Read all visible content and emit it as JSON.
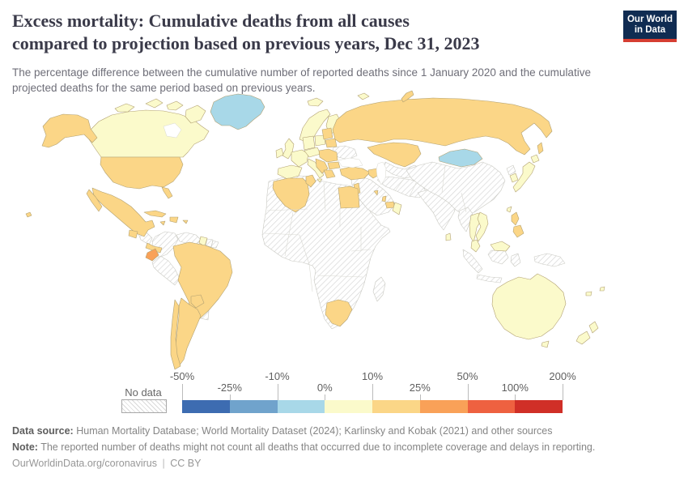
{
  "header": {
    "title_line1": "Excess mortality: Cumulative deaths from all causes",
    "title_line2": "compared to projection based on previous years, Dec 31, 2023",
    "subtitle": "The percentage difference between the cumulative number of reported deaths since 1 January 2020 and the cumulative projected deaths for the same period based on previous years.",
    "logo": {
      "line1": "Our World",
      "line2": "in Data"
    }
  },
  "legend": {
    "no_data_label": "No data",
    "ticks": [
      {
        "label": "-50%",
        "row": "top"
      },
      {
        "label": "-25%",
        "row": "bottom"
      },
      {
        "label": "-10%",
        "row": "top"
      },
      {
        "label": "0%",
        "row": "bottom"
      },
      {
        "label": "10%",
        "row": "top"
      },
      {
        "label": "25%",
        "row": "bottom"
      },
      {
        "label": "50%",
        "row": "top"
      },
      {
        "label": "100%",
        "row": "bottom"
      },
      {
        "label": "200%",
        "row": "top"
      }
    ],
    "bins": [
      {
        "label": "-50% to -25%",
        "color": "#3d6cb1"
      },
      {
        "label": "-25% to -10%",
        "color": "#70a3cc"
      },
      {
        "label": "-10% to 0%",
        "color": "#a8d8e8"
      },
      {
        "label": "0% to 10%",
        "color": "#fbfacb"
      },
      {
        "label": "10% to 25%",
        "color": "#fbd687"
      },
      {
        "label": "25% to 50%",
        "color": "#f9a158"
      },
      {
        "label": "50% to 100%",
        "color": "#ee6140"
      },
      {
        "label": "100% to 200%",
        "color": "#d02f27"
      }
    ]
  },
  "map": {
    "border_color": "#b2a172",
    "no_data_border": "#c9c9c2",
    "regions": {
      "africa": "no_data",
      "madagascar": "no_data",
      "colombia": "no_data",
      "venezuela": "no_data",
      "suriname": "no_data",
      "fr-guiana": "no_data",
      "peru": "no_data",
      "bolivia": "no_data",
      "uruguay": "no_data",
      "honduras-nicaragua": "no_data",
      "ukraine": "no_data",
      "central-asia": "no_data",
      "middle-east": "no_data",
      "iran-afghan-pak": "no_data",
      "india": "no_data",
      "china": "no_data",
      "myanmar": "no_data",
      "north-korea": "no_data",
      "sumatra": "no_data",
      "java": "no_data",
      "borneo-indonesia": "no_data",
      "sulawesi": "no_data",
      "papua": "no_data",
      "greenland": 2,
      "mongolia": 2,
      "canada": 3,
      "canadian-arctic": 3,
      "iceland": 3,
      "svalbard": 3,
      "uk": 3,
      "ireland": 3,
      "norway-sweden": 3,
      "finland": 3,
      "denmark": 3,
      "germany": 3,
      "poland": 3,
      "france": 3,
      "iberia": 3,
      "italy": 3,
      "sicily": 3,
      "czech-austria": 3,
      "guyana": 3,
      "japan": 3,
      "hokkaido": 3,
      "south-korea": 3,
      "taiwan": 3,
      "thailand": 3,
      "vietnam": 3,
      "malaysia-peninsula": 3,
      "borneo-malaysia": 3,
      "sri-lanka": 3,
      "oman": 3,
      "australia": 3,
      "tasmania": 3,
      "nz-north": 3,
      "nz-south": 3,
      "new-caledonia": 3,
      "fiji": 3,
      "alaska": 4,
      "usa": 4,
      "florida": 4,
      "hawaii": 4,
      "mexico": 4,
      "baja-california": 4,
      "guatemala": 4,
      "costa-rica-panama": 4,
      "cuba": 4,
      "hispaniola": 4,
      "jamaica": 4,
      "puerto-rico": 4,
      "brazil": 4,
      "paraguay": 4,
      "argentina": 4,
      "chile": 4,
      "baltics": 4,
      "belarus": 4,
      "hungary-romania": 4,
      "balkans": 4,
      "bulgaria": 4,
      "greece": 4,
      "turkey": 4,
      "caucasus": 4,
      "russia": 4,
      "sakhalin": 4,
      "novaya-zemlya": 4,
      "kazakhstan": 4,
      "israel-jordan": 4,
      "uae": 4,
      "qatar": 4,
      "kuwait": 4,
      "algeria": 4,
      "tunisia": 4,
      "egypt": 4,
      "south-africa": 4,
      "philippines": 4,
      "ecuador": 5
    }
  },
  "footer": {
    "data_source_label": "Data source:",
    "data_source": "Human Mortality Database; World Mortality Dataset (2024); Karlinsky and Kobak (2021) and other sources",
    "note_label": "Note:",
    "note": "The reported number of deaths might not count all deaths that occurred due to incomplete coverage and delays in reporting.",
    "url": "OurWorldinData.org/coronavirus",
    "separator": "|",
    "license": "CC BY"
  },
  "chart_data": {
    "type": "choropleth",
    "title": "Excess mortality: Cumulative deaths from all causes compared to projection based on previous years, Dec 31, 2023",
    "subtitle": "The percentage difference between the cumulative number of reported deaths since 1 January 2020 and the cumulative projected deaths for the same period based on previous years.",
    "unit": "%",
    "legend_ticks": [
      "-50%",
      "-25%",
      "-10%",
      "0%",
      "10%",
      "25%",
      "50%",
      "100%",
      "200%"
    ],
    "bins": [
      {
        "range": "-50% to -25%",
        "color": "#3d6cb1"
      },
      {
        "range": "-25% to -10%",
        "color": "#70a3cc"
      },
      {
        "range": "-10% to 0%",
        "color": "#a8d8e8"
      },
      {
        "range": "0% to 10%",
        "color": "#fbfacb"
      },
      {
        "range": "10% to 25%",
        "color": "#fbd687"
      },
      {
        "range": "25% to 50%",
        "color": "#f9a158"
      },
      {
        "range": "50% to 100%",
        "color": "#ee6140"
      },
      {
        "range": "100% to 200%",
        "color": "#d02f27"
      }
    ],
    "no_data_label": "No data",
    "regions_by_bin": {
      "-10% to 0%": [
        "Greenland",
        "Mongolia"
      ],
      "0% to 10%": [
        "Canada",
        "Iceland",
        "United Kingdom",
        "Ireland",
        "Norway",
        "Sweden",
        "Finland",
        "Denmark",
        "Germany",
        "Poland",
        "France",
        "Spain",
        "Portugal",
        "Italy",
        "Austria",
        "Switzerland",
        "Czechia",
        "Guyana",
        "Japan",
        "South Korea",
        "Taiwan",
        "Thailand",
        "Vietnam",
        "Malaysia",
        "Sri Lanka",
        "Oman",
        "Australia",
        "New Zealand"
      ],
      "10% to 25%": [
        "United States",
        "Mexico",
        "Guatemala",
        "Panama",
        "Cuba",
        "Brazil",
        "Paraguay",
        "Argentina",
        "Chile",
        "Baltic states",
        "Belarus",
        "Hungary",
        "Romania",
        "Bulgaria",
        "Serbia and Balkans",
        "Greece",
        "Turkey",
        "Georgia and Caucasus",
        "Russia",
        "Kazakhstan",
        "Israel",
        "Jordan",
        "United Arab Emirates",
        "Qatar",
        "Kuwait",
        "Algeria",
        "Tunisia",
        "Egypt",
        "South Africa",
        "Philippines"
      ],
      "25% to 50%": [
        "Ecuador"
      ],
      "No data": [
        "Most of Africa",
        "China",
        "India",
        "Iran",
        "Saudi Arabia and Middle East",
        "Central Asia",
        "Ukraine",
        "Colombia",
        "Venezuela",
        "Peru",
        "Bolivia",
        "Uruguay",
        "Nicaragua",
        "Honduras",
        "Myanmar",
        "North Korea",
        "Indonesia",
        "Papua New Guinea",
        "Madagascar"
      ]
    }
  }
}
